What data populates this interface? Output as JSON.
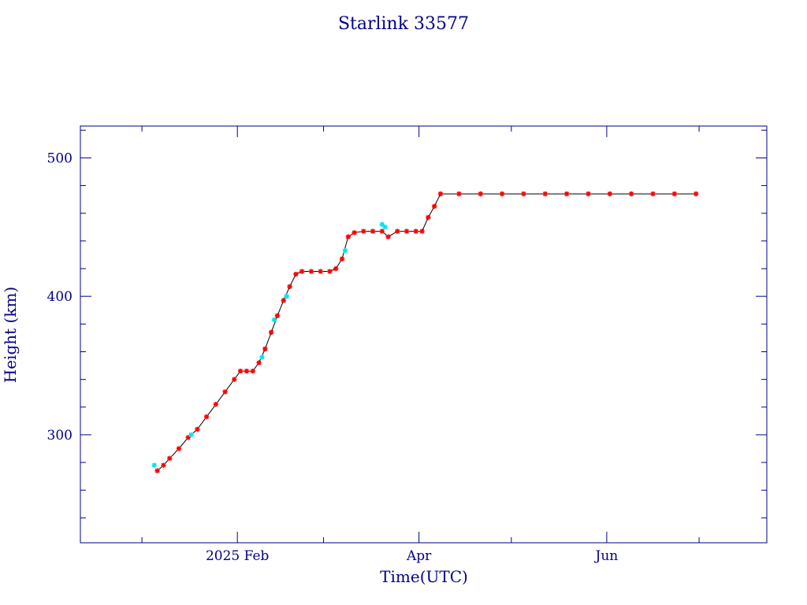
{
  "chart_data": {
    "type": "scatter",
    "title": "Starlink 33577",
    "xlabel": "Time(UTC)",
    "ylabel": "Height (km)",
    "x_axis": {
      "type": "date",
      "range": [
        "2024-12-12",
        "2025-07-23"
      ],
      "tick_labels": [
        {
          "label": "2025 Feb",
          "value": "2025-02-01"
        },
        {
          "label": "Apr",
          "value": "2025-04-01"
        },
        {
          "label": "Jun",
          "value": "2025-06-01"
        }
      ]
    },
    "y_axis": {
      "range": [
        222,
        523
      ],
      "tick_labels": [
        {
          "label": "300",
          "value": 300
        },
        {
          "label": "400",
          "value": 400
        },
        {
          "label": "500",
          "value": 500
        }
      ]
    },
    "grid": false,
    "legend": "none",
    "colors": {
      "axes": "#00008b",
      "text": "#00008b",
      "line": "#000000",
      "primary_points": "#ff0000",
      "secondary_points": "#00e5ee"
    },
    "series": [
      {
        "marker": "star",
        "color": "#ff0000",
        "points": [
          [
            "2025-01-06",
            274
          ],
          [
            "2025-01-08",
            278
          ],
          [
            "2025-01-10",
            283
          ],
          [
            "2025-01-13",
            290
          ],
          [
            "2025-01-16",
            298
          ],
          [
            "2025-01-19",
            304
          ],
          [
            "2025-01-22",
            313
          ],
          [
            "2025-01-25",
            322
          ],
          [
            "2025-01-28",
            331
          ],
          [
            "2025-01-31",
            340
          ],
          [
            "2025-02-02",
            346
          ],
          [
            "2025-02-04",
            346
          ],
          [
            "2025-02-06",
            346
          ],
          [
            "2025-02-08",
            352
          ],
          [
            "2025-02-10",
            362
          ],
          [
            "2025-02-12",
            374
          ],
          [
            "2025-02-14",
            386
          ],
          [
            "2025-02-16",
            397
          ],
          [
            "2025-02-18",
            407
          ],
          [
            "2025-02-20",
            416
          ],
          [
            "2025-02-22",
            418
          ],
          [
            "2025-02-25",
            418
          ],
          [
            "2025-02-28",
            418
          ],
          [
            "2025-03-03",
            418
          ],
          [
            "2025-03-05",
            420
          ],
          [
            "2025-03-07",
            427
          ],
          [
            "2025-03-09",
            443
          ],
          [
            "2025-03-11",
            446
          ],
          [
            "2025-03-14",
            447
          ],
          [
            "2025-03-17",
            447
          ],
          [
            "2025-03-20",
            447
          ],
          [
            "2025-03-22",
            443
          ],
          [
            "2025-03-25",
            447
          ],
          [
            "2025-03-28",
            447
          ],
          [
            "2025-03-31",
            447
          ],
          [
            "2025-04-02",
            447
          ],
          [
            "2025-04-04",
            457
          ],
          [
            "2025-04-06",
            465
          ],
          [
            "2025-04-08",
            474
          ],
          [
            "2025-04-14",
            474
          ],
          [
            "2025-04-21",
            474
          ],
          [
            "2025-04-28",
            474
          ],
          [
            "2025-05-05",
            474
          ],
          [
            "2025-05-12",
            474
          ],
          [
            "2025-05-19",
            474
          ],
          [
            "2025-05-26",
            474
          ],
          [
            "2025-06-02",
            474
          ],
          [
            "2025-06-09",
            474
          ],
          [
            "2025-06-16",
            474
          ],
          [
            "2025-06-23",
            474
          ],
          [
            "2025-06-30",
            474
          ]
        ]
      },
      {
        "marker": "star",
        "color": "#00e5ee",
        "points": [
          [
            "2025-01-05",
            278
          ],
          [
            "2025-01-17",
            300
          ],
          [
            "2025-02-09",
            356
          ],
          [
            "2025-02-13",
            383
          ],
          [
            "2025-02-17",
            400
          ],
          [
            "2025-03-08",
            433
          ],
          [
            "2025-03-20",
            452
          ],
          [
            "2025-03-21",
            450
          ]
        ]
      }
    ]
  }
}
